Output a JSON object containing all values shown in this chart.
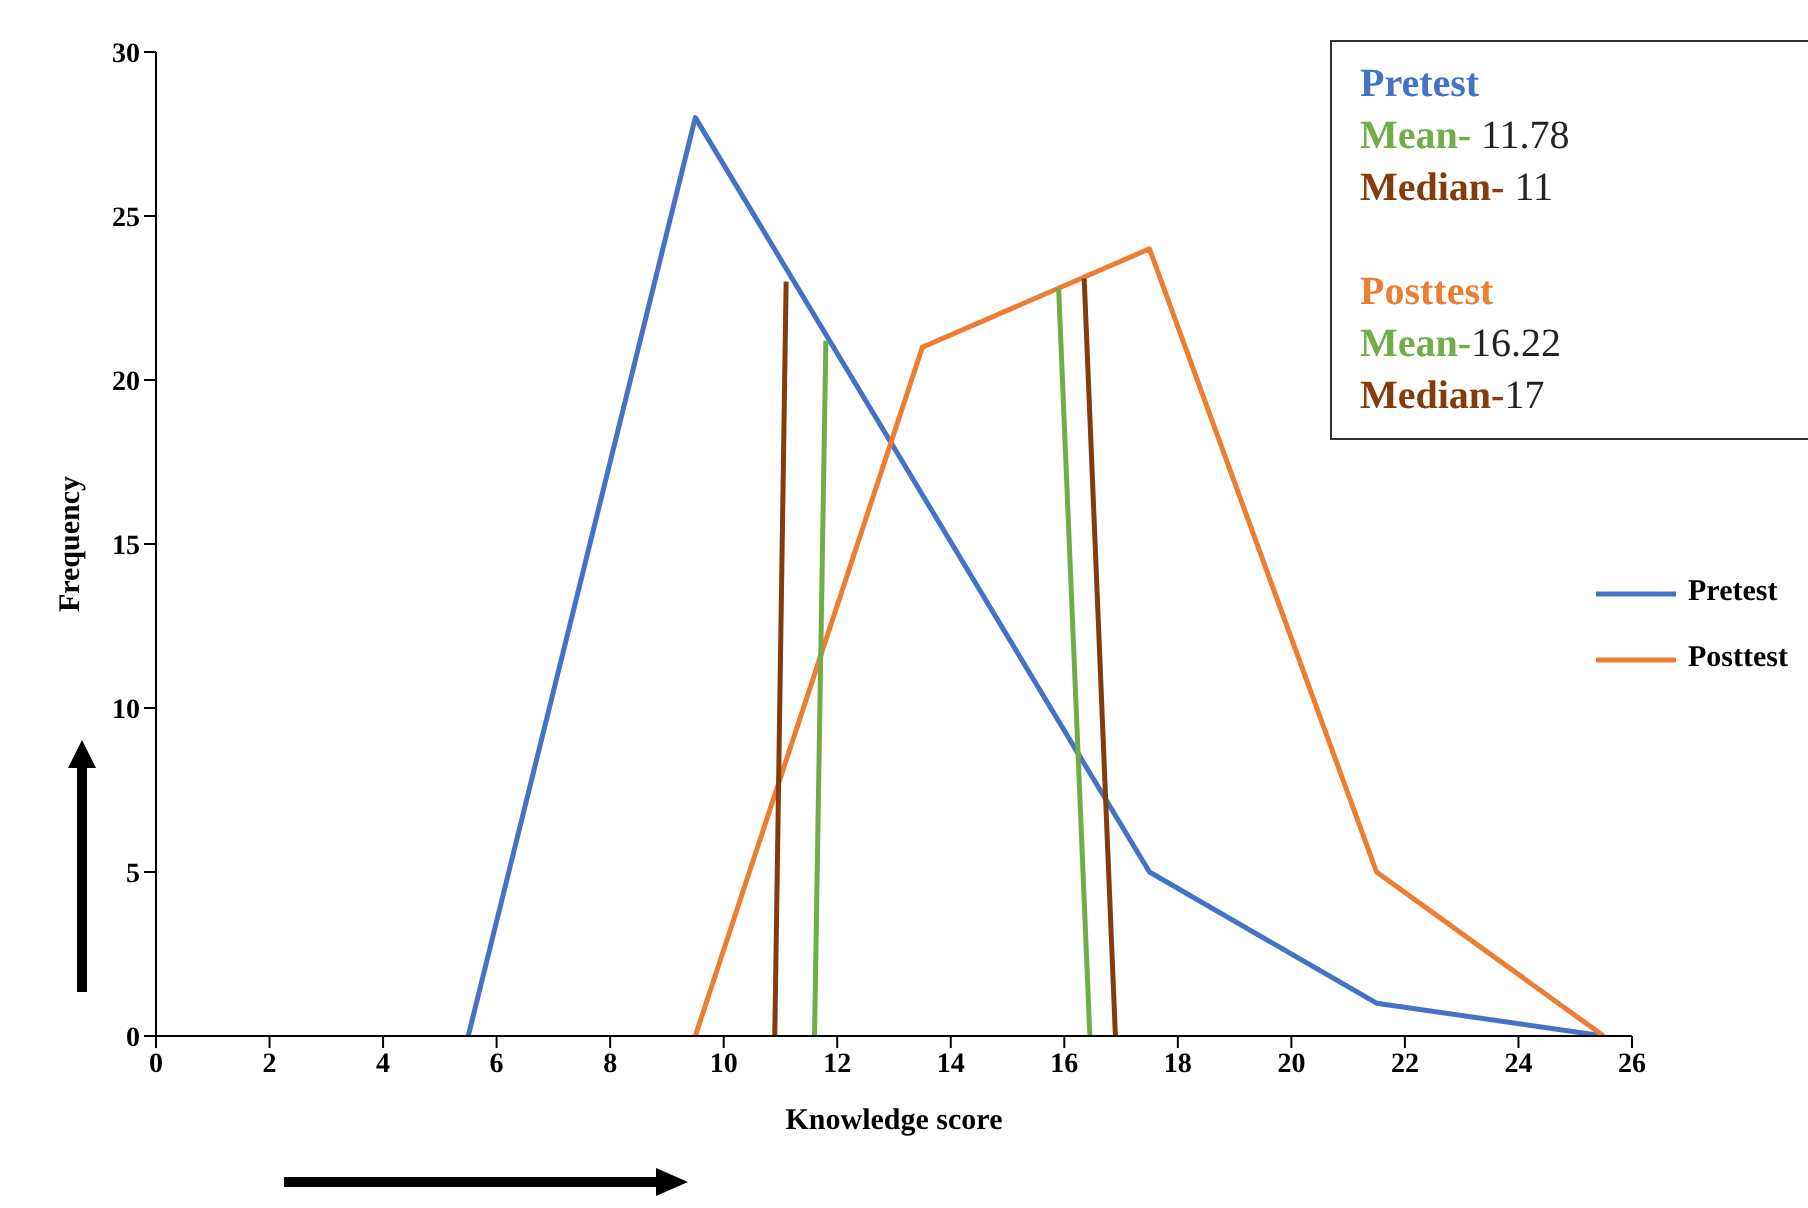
{
  "chart_data": {
    "type": "line",
    "xlabel": "Knowledge score",
    "ylabel": "Frequency",
    "xlim": [
      0,
      26
    ],
    "xticks": [
      0,
      2,
      4,
      6,
      8,
      10,
      12,
      14,
      16,
      18,
      20,
      22,
      24,
      26
    ],
    "ylim": [
      0,
      30
    ],
    "yticks": [
      0,
      5,
      10,
      15,
      20,
      25,
      30
    ],
    "grid": false,
    "legend": "right",
    "marker": "none",
    "line_style": "solid",
    "series": [
      {
        "name": "Pretest",
        "color": "#4472c4",
        "x": [
          5.5,
          9.5,
          17.5,
          21.5,
          25.5
        ],
        "values": [
          0,
          28,
          5,
          1,
          0
        ]
      },
      {
        "name": "Posttest",
        "color": "#ed7d31",
        "x": [
          9.5,
          13.5,
          17.5,
          21.5,
          25.5
        ],
        "values": [
          0,
          21,
          24,
          5,
          0
        ]
      },
      {
        "color": "#70ad47",
        "x": [
          11.6,
          11.8
        ],
        "values": [
          0,
          21.2
        ]
      },
      {
        "color": "#843c0c",
        "x": [
          10.9,
          11.1
        ],
        "values": [
          0,
          23
        ]
      },
      {
        "color": "#70ad47",
        "x": [
          16.45,
          15.9
        ],
        "values": [
          0,
          22.8
        ]
      },
      {
        "color": "#843c0c",
        "x": [
          16.9,
          16.35
        ],
        "values": [
          0,
          23.1
        ]
      }
    ],
    "annotations": [
      "Pretest",
      "Mean- 11.78",
      "Median- 11",
      "Posttest",
      "Mean-16.22",
      "Median-17"
    ]
  }
}
